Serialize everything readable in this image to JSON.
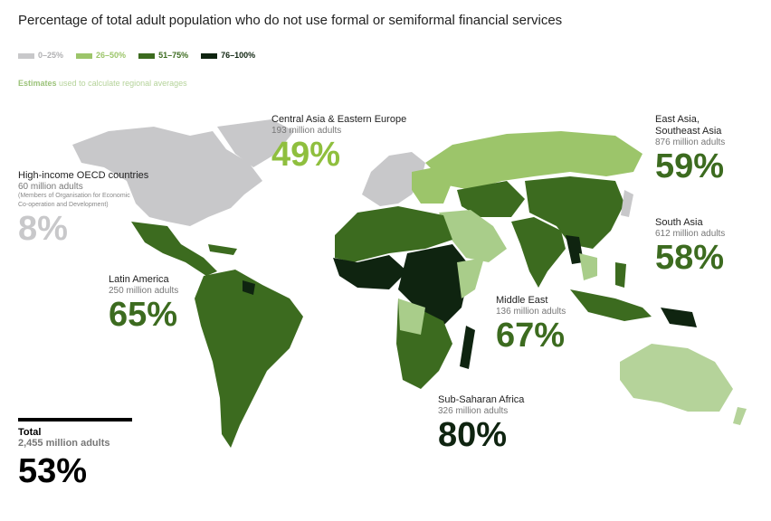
{
  "title": "Percentage of total adult population who do not use formal or semiformal financial services",
  "legend": [
    {
      "label": "0–25%",
      "color": "#c8c8ca"
    },
    {
      "label": "26–50%",
      "color": "#9cc56a"
    },
    {
      "label": "51–75%",
      "color": "#3c6b1f"
    },
    {
      "label": "76–100%",
      "color": "#0f2410"
    }
  ],
  "estimates": {
    "label": "Estimates",
    "text": "used to calculate regional averages",
    "color": "#b5d39a"
  },
  "regions": [
    {
      "name": [
        "High-income OECD countries"
      ],
      "adults": "60 million adults",
      "note": [
        "(Members of Organisation for Economic",
        "Co-operation and Development)"
      ],
      "percent": "8%",
      "color": "#c8c8ca"
    },
    {
      "name": [
        "Central Asia & Eastern Europe"
      ],
      "adults": "193 million adults",
      "percent": "49%",
      "color": "#8fbf3e"
    },
    {
      "name": [
        "East Asia,",
        "Southeast Asia"
      ],
      "adults": "876 million adults",
      "percent": "59%",
      "color": "#3c6b1f"
    },
    {
      "name": [
        "South Asia"
      ],
      "adults": "612 million adults",
      "percent": "58%",
      "color": "#3c6b1f"
    },
    {
      "name": [
        "Latin America"
      ],
      "adults": "250 million adults",
      "percent": "65%",
      "color": "#3c6b1f"
    },
    {
      "name": [
        "Middle East"
      ],
      "adults": "136 million adults",
      "percent": "67%",
      "color": "#3c6b1f"
    },
    {
      "name": [
        "Sub-Saharan Africa"
      ],
      "adults": "326 million adults",
      "percent": "80%",
      "color": "#0f2410"
    }
  ],
  "total": {
    "label": "Total",
    "adults": "2,455 million adults",
    "percent": "53%"
  }
}
